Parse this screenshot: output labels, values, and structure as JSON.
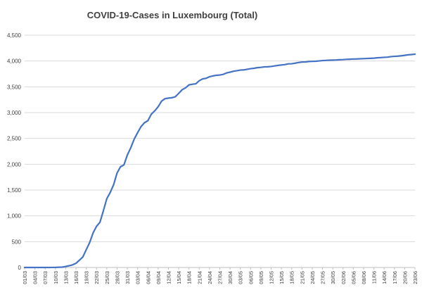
{
  "chart_data": {
    "type": "line",
    "title": "COVID-19-Cases in Luxembourg (Total)",
    "xlabel": "",
    "ylabel": "",
    "ylim": [
      0,
      4500
    ],
    "yticks": [
      0,
      500,
      1000,
      1500,
      2000,
      2500,
      3000,
      3500,
      4000,
      4500
    ],
    "ytick_labels": [
      "0",
      "500",
      "1,000",
      "1,500",
      "2,000",
      "2,500",
      "3,000",
      "3,500",
      "4,000",
      "4,500"
    ],
    "xtick_labels": [
      "01/03",
      "04/03",
      "07/03",
      "10/03",
      "13/03",
      "16/03",
      "19/03",
      "22/03",
      "25/03",
      "28/03",
      "31/03",
      "03/04",
      "06/04",
      "09/04",
      "12/04",
      "15/04",
      "18/04",
      "21/04",
      "24/04",
      "27/04",
      "30/04",
      "03/05",
      "06/05",
      "09/05",
      "12/05",
      "15/05",
      "18/05",
      "21/05",
      "24/05",
      "27/05",
      "30/05",
      "02/06",
      "05/06",
      "08/06",
      "11/06",
      "14/06",
      "17/06",
      "20/06",
      "23/06"
    ],
    "x_start": "01/03",
    "x_end": "23/06",
    "grid": true,
    "legend": "none",
    "series": [
      {
        "color": "#4472c4",
        "values": [
          0,
          0,
          0,
          0,
          0,
          0,
          0,
          0,
          1,
          2,
          5,
          7,
          19,
          34,
          51,
          81,
          140,
          203,
          345,
          484,
          670,
          798,
          875,
          1099,
          1333,
          1453,
          1605,
          1831,
          1950,
          1988,
          2178,
          2319,
          2487,
          2612,
          2729,
          2804,
          2843,
          2970,
          3034,
          3115,
          3223,
          3270,
          3281,
          3288,
          3307,
          3373,
          3444,
          3480,
          3537,
          3550,
          3558,
          3618,
          3654,
          3665,
          3695,
          3711,
          3723,
          3729,
          3741,
          3769,
          3784,
          3802,
          3812,
          3824,
          3828,
          3840,
          3851,
          3859,
          3871,
          3877,
          3886,
          3888,
          3894,
          3904,
          3915,
          3923,
          3930,
          3945,
          3947,
          3958,
          3971,
          3980,
          3981,
          3990,
          3993,
          3995,
          4001,
          4008,
          4012,
          4016,
          4018,
          4020,
          4024,
          4027,
          4032,
          4035,
          4039,
          4040,
          4043,
          4046,
          4049,
          4052,
          4055,
          4062,
          4066,
          4071,
          4075,
          4085,
          4090,
          4094,
          4101,
          4110,
          4120,
          4125,
          4133
        ]
      }
    ]
  }
}
